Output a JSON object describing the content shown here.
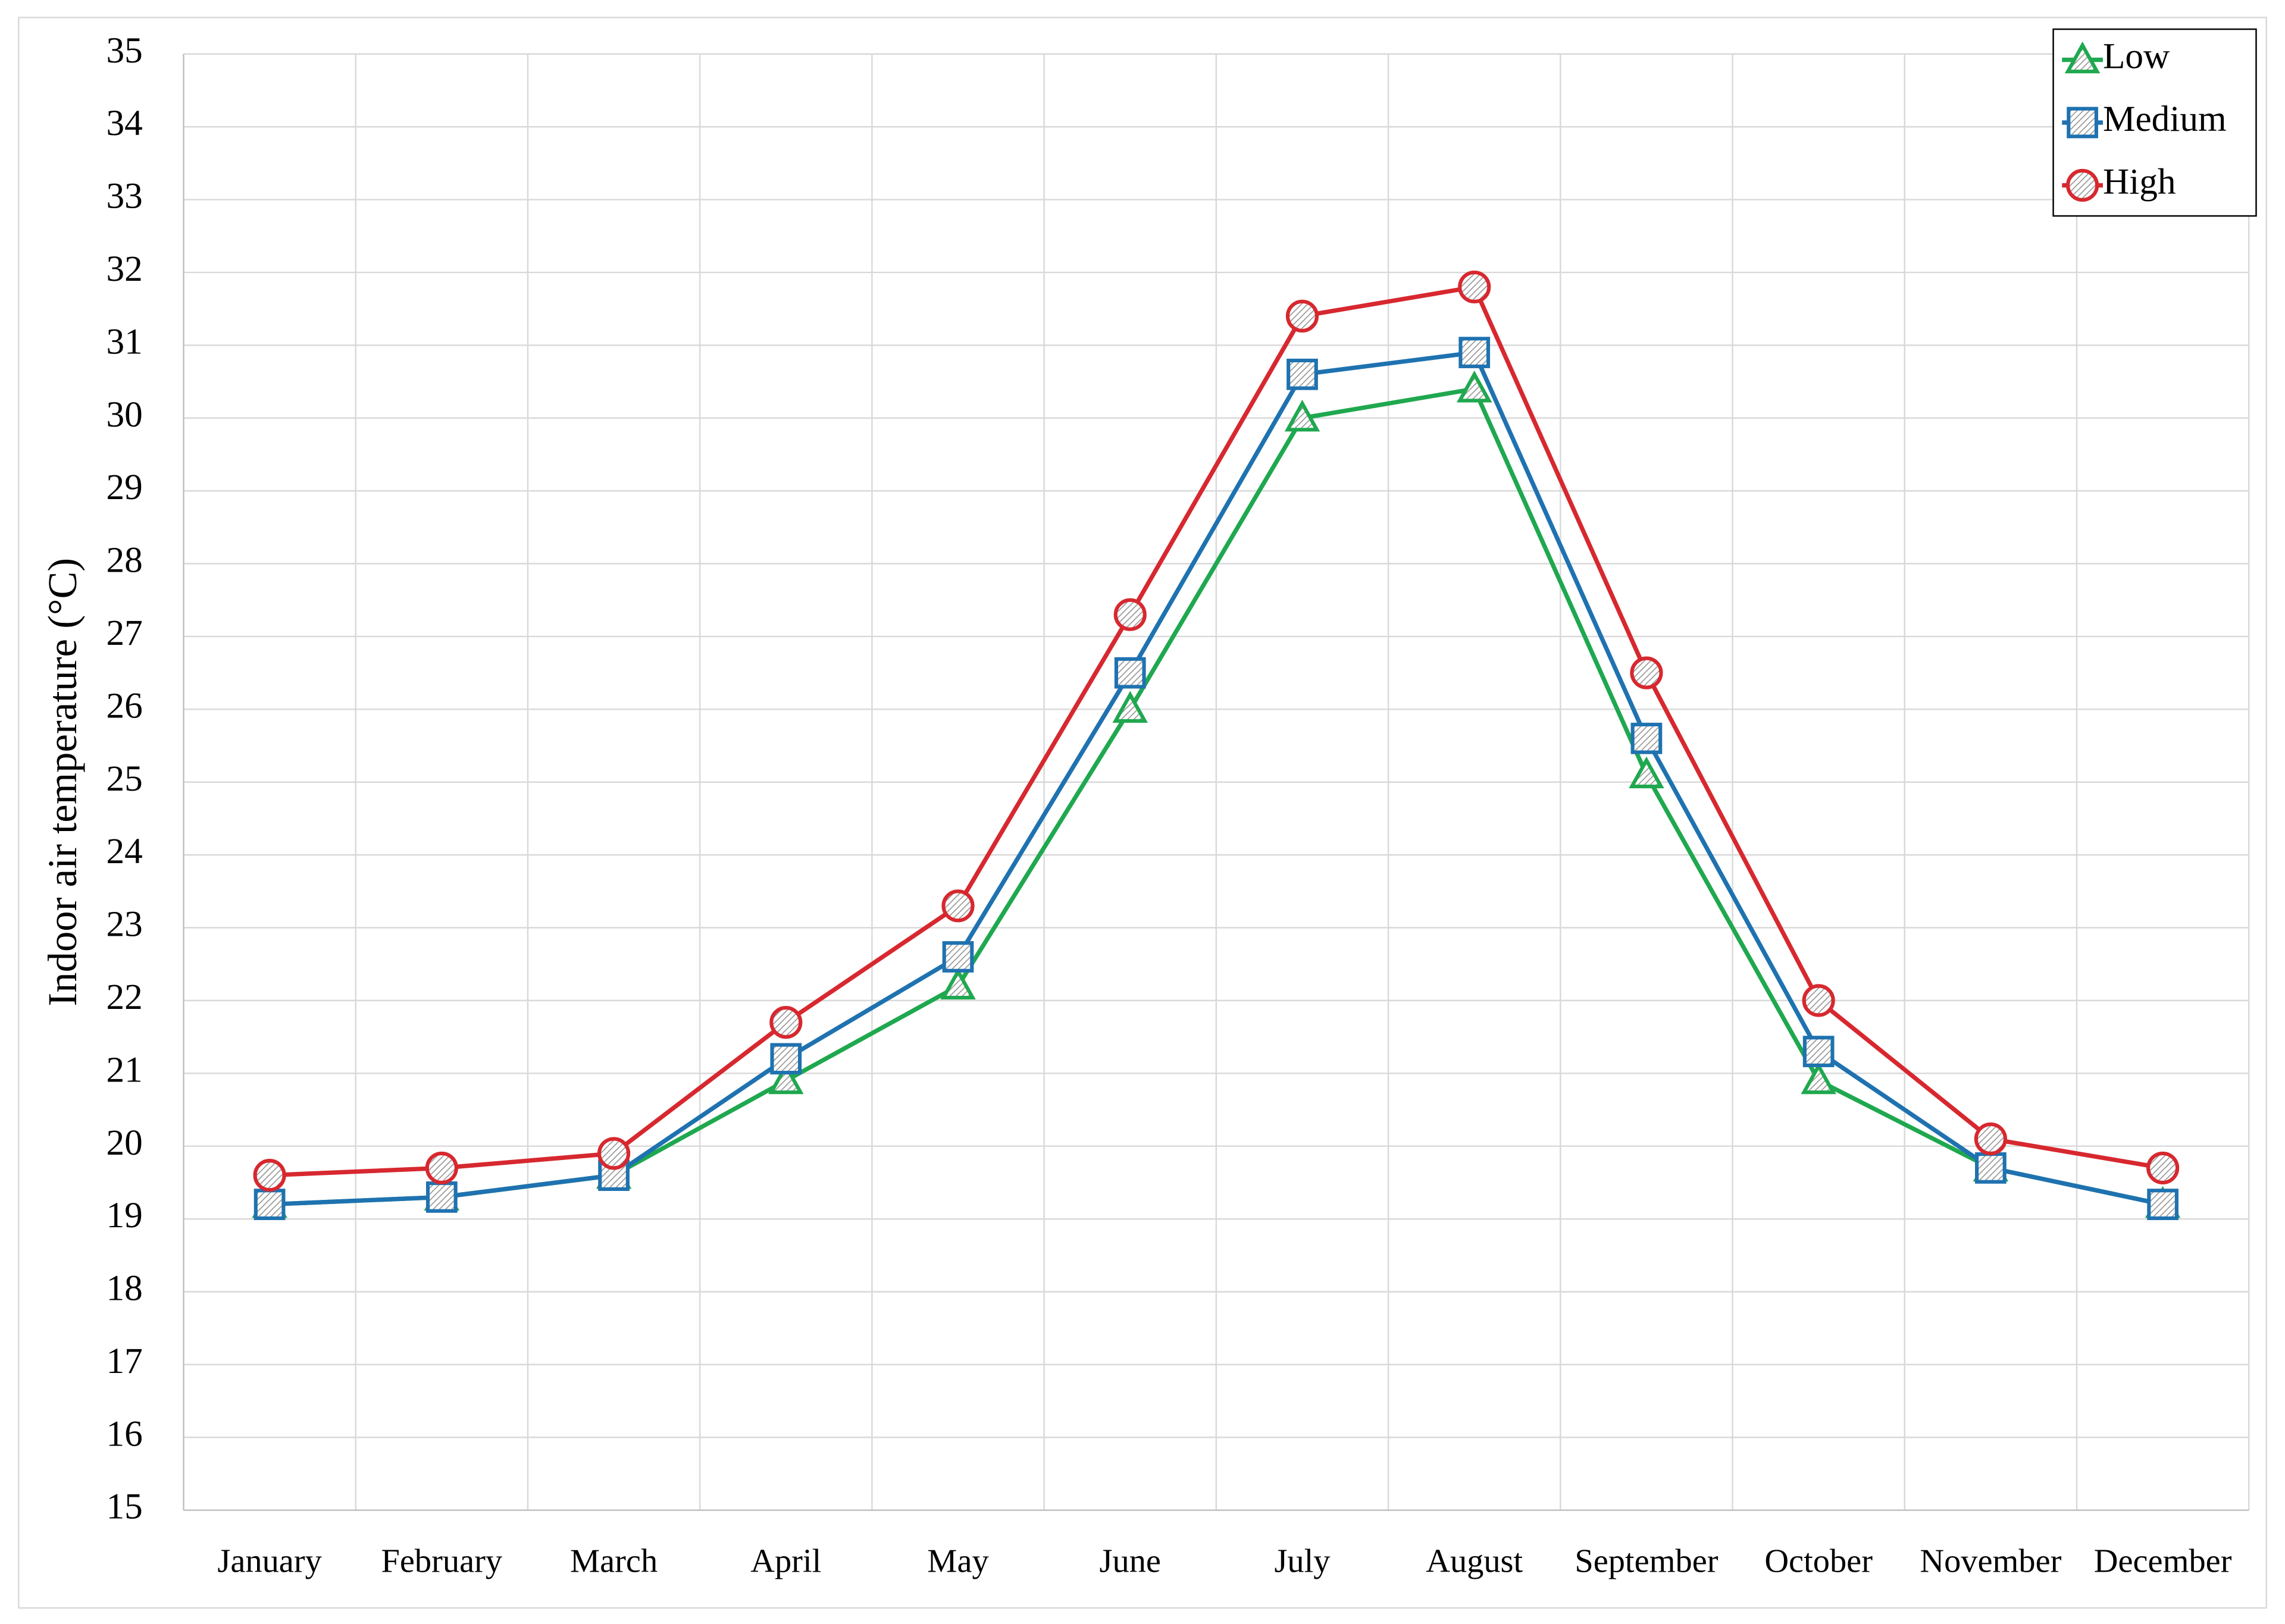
{
  "chart_data": {
    "type": "line",
    "y_label": "Indoor air temperature (°C)",
    "categories": [
      "January",
      "February",
      "March",
      "April",
      "May",
      "June",
      "July",
      "August",
      "September",
      "October",
      "November",
      "December"
    ],
    "series": [
      {
        "name": "Low",
        "color": "#1fa84f",
        "marker": "triangle",
        "values": [
          19.2,
          19.3,
          19.6,
          20.9,
          22.2,
          26.0,
          30.0,
          30.4,
          25.1,
          20.9,
          19.7,
          19.2
        ]
      },
      {
        "name": "Medium",
        "color": "#1f72b0",
        "marker": "square",
        "values": [
          19.2,
          19.3,
          19.6,
          21.2,
          22.6,
          26.5,
          30.6,
          30.9,
          25.6,
          21.3,
          19.7,
          19.2
        ]
      },
      {
        "name": "High",
        "color": "#d7282f",
        "marker": "circle",
        "values": [
          19.6,
          19.7,
          19.9,
          21.7,
          23.3,
          27.3,
          31.4,
          31.8,
          26.5,
          22.0,
          20.1,
          19.7
        ]
      }
    ],
    "ylim": [
      15,
      35
    ],
    "yticks": [
      15,
      16,
      17,
      18,
      19,
      20,
      21,
      22,
      23,
      24,
      25,
      26,
      27,
      28,
      29,
      30,
      31,
      32,
      33,
      34,
      35
    ],
    "grid": true,
    "legend": "upper-right"
  }
}
